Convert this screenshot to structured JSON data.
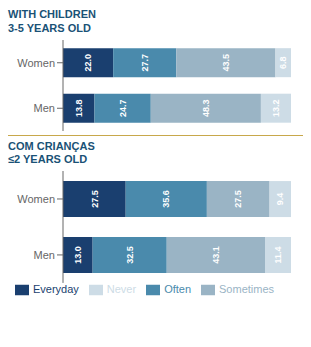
{
  "chart_data": [
    {
      "type": "bar",
      "title": "WITH CHILDREN\n3-5 YEARS OLD",
      "categories": [
        "Women",
        "Men"
      ],
      "orientation": "horizontal",
      "stacked": true,
      "data_labels": true,
      "tick_labels": "y",
      "xlim": [
        0,
        100
      ],
      "series": [
        {
          "name": "Everyday",
          "color": "#1a3f6f",
          "values": [
            22.0,
            13.8
          ],
          "value_labels": [
            "22.0",
            "13.8"
          ]
        },
        {
          "name": "Often",
          "color": "#4a8aac",
          "values": [
            27.7,
            24.7
          ],
          "value_labels": [
            "27.7",
            "24.7"
          ]
        },
        {
          "name": "Sometimes",
          "color": "#9ab4c5",
          "values": [
            43.5,
            48.3
          ],
          "value_labels": [
            "43.5",
            "48.3"
          ]
        },
        {
          "name": "Never",
          "color": "#cddce6",
          "values": [
            6.8,
            13.2
          ],
          "value_labels": [
            "6.8",
            "13.2"
          ]
        }
      ]
    },
    {
      "type": "bar",
      "title": "COM CRIANÇAS\n≤2 YEARS OLD",
      "categories": [
        "Women",
        "Men"
      ],
      "orientation": "horizontal",
      "stacked": true,
      "data_labels": true,
      "tick_labels": "y",
      "xlim": [
        0,
        100
      ],
      "legend": "bottom",
      "series": [
        {
          "name": "Everyday",
          "color": "#1a3f6f",
          "values": [
            27.5,
            13.0
          ],
          "value_labels": [
            "27.5",
            "13.0"
          ]
        },
        {
          "name": "Often",
          "color": "#4a8aac",
          "values": [
            35.6,
            32.5
          ],
          "value_labels": [
            "35.6",
            "32.5"
          ]
        },
        {
          "name": "Sometimes",
          "color": "#9ab4c5",
          "values": [
            27.5,
            43.1
          ],
          "value_labels": [
            "27.5",
            "43.1"
          ]
        },
        {
          "name": "Never",
          "color": "#cddce6",
          "values": [
            9.4,
            11.4
          ],
          "value_labels": [
            "9.4",
            "11.4"
          ]
        }
      ]
    }
  ]
}
